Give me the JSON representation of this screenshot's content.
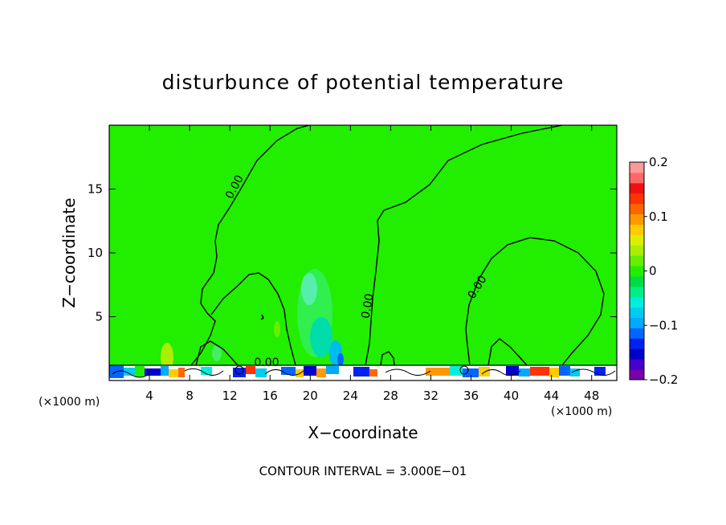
{
  "chart_data": {
    "type": "heatmap",
    "title": "disturbunce of potential temperature",
    "xlabel": "X−coordinate",
    "ylabel": "Z−coordinate",
    "x_unit": "(×1000 m)",
    "xlim": [
      0,
      50.5
    ],
    "ylim": [
      0,
      20
    ],
    "x_ticks": [
      4,
      8,
      12,
      16,
      20,
      24,
      28,
      32,
      36,
      40,
      44,
      48
    ],
    "x_tick_labels": [
      "4",
      "8",
      "12",
      "16",
      "20",
      "24",
      "28",
      "32",
      "36",
      "40",
      "44",
      "48"
    ],
    "y_ticks": [
      5,
      10,
      15
    ],
    "y_tick_labels": [
      "5",
      "10",
      "15"
    ],
    "colorbar": {
      "range": [
        -0.2,
        0.2
      ],
      "ticks": [
        0.2,
        0.1,
        0,
        -0.1,
        -0.2
      ],
      "tick_labels": [
        "0.2",
        "0.1",
        "0",
        "−0.1",
        "−0.2"
      ],
      "colors": [
        "#7a00aa",
        "#4400cc",
        "#0000cc",
        "#0022ee",
        "#0066ff",
        "#00aaff",
        "#00ccee",
        "#00eedd",
        "#00ee88",
        "#00dd44",
        "#22ee00",
        "#66ee00",
        "#aaee00",
        "#ddee00",
        "#ffcc00",
        "#ff9900",
        "#ff6600",
        "#ff3300",
        "#ee1111",
        "#ff6666",
        "#ff9999"
      ]
    },
    "background_value": 0.0,
    "contour_interval": 0.3,
    "contour_labels": [
      "0.00",
      "0.00",
      "0.00",
      "0.00"
    ],
    "grid": false,
    "footer": "CONTOUR INTERVAL = 3.000E−01"
  }
}
